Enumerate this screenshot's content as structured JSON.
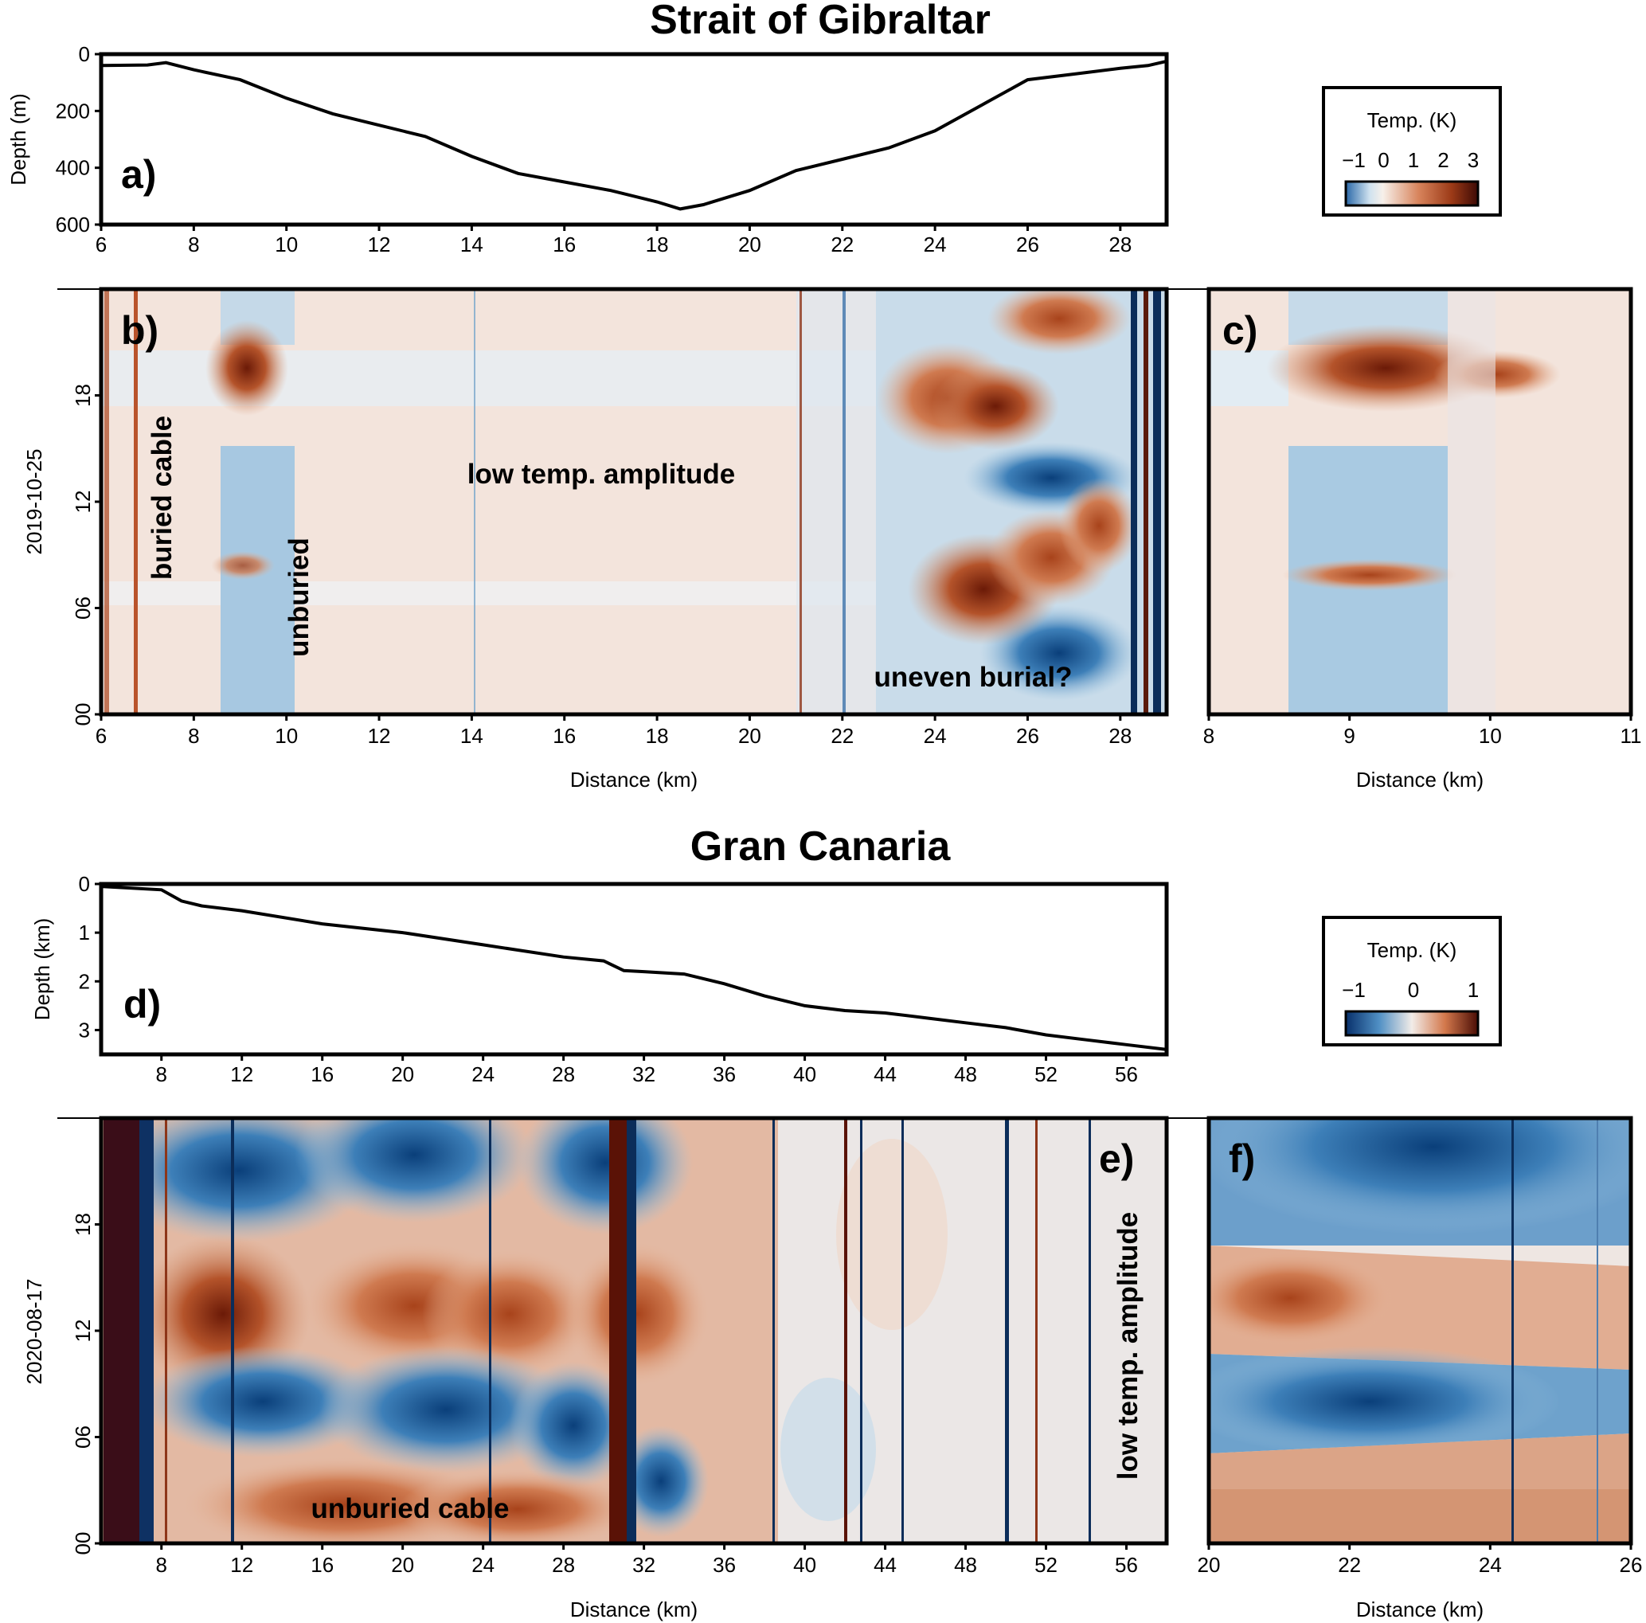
{
  "figure": {
    "gibraltar_title": "Strait of Gibraltar",
    "canaria_title": "Gran Canaria"
  },
  "chart_data": [
    {
      "id": "a",
      "type": "line",
      "panel_label": "a)",
      "ylabel": "Depth (m)",
      "xlabel": "",
      "xlim": [
        6,
        29
      ],
      "ylim": [
        600,
        0
      ],
      "xticks": [
        "6",
        "8",
        "10",
        "12",
        "14",
        "16",
        "18",
        "20",
        "22",
        "24",
        "26",
        "28"
      ],
      "yticks": [
        "0",
        "200",
        "400",
        "600"
      ],
      "series": [
        {
          "name": "bathymetry",
          "x": [
            6,
            7,
            7.4,
            8,
            9,
            10,
            11,
            12,
            13,
            14,
            15,
            16,
            17,
            18,
            18.5,
            19,
            20,
            21,
            22,
            23,
            24,
            25,
            26,
            27,
            28,
            28.6,
            29
          ],
          "y": [
            40,
            38,
            30,
            55,
            90,
            155,
            210,
            250,
            290,
            360,
            420,
            450,
            480,
            520,
            545,
            530,
            480,
            410,
            370,
            330,
            270,
            180,
            90,
            70,
            50,
            40,
            25
          ]
        }
      ]
    },
    {
      "id": "b",
      "type": "heatmap",
      "panel_label": "b)",
      "ylabel": "2019-10-25",
      "xlabel": "Distance (km)",
      "xlim": [
        6,
        29
      ],
      "ylim": [
        0,
        24
      ],
      "xticks": [
        "6",
        "8",
        "10",
        "12",
        "14",
        "16",
        "18",
        "20",
        "22",
        "24",
        "26",
        "28"
      ],
      "yticks": [
        "00",
        "06",
        "12",
        "18"
      ],
      "colorscale": "Temp. (K), range -1 to 3",
      "annotations": [
        "buried cable",
        "unburied",
        "low temp. amplitude",
        "uneven burial?"
      ]
    },
    {
      "id": "c",
      "type": "heatmap",
      "panel_label": "c)",
      "xlabel": "Distance (km)",
      "xlim": [
        8,
        11
      ],
      "ylim": [
        0,
        24
      ],
      "xticks": [
        "8",
        "9",
        "10",
        "11"
      ]
    },
    {
      "id": "d",
      "type": "line",
      "panel_label": "d)",
      "ylabel": "Depth (km)",
      "xlabel": "",
      "xlim": [
        5,
        58
      ],
      "ylim": [
        3.5,
        0
      ],
      "xticks": [
        "8",
        "12",
        "16",
        "20",
        "24",
        "28",
        "32",
        "36",
        "40",
        "44",
        "48",
        "52",
        "56"
      ],
      "yticks": [
        "0",
        "1",
        "2",
        "3"
      ],
      "series": [
        {
          "name": "bathymetry",
          "x": [
            5,
            8,
            9,
            10,
            12,
            16,
            20,
            24,
            28,
            30,
            31,
            32,
            34,
            36,
            38,
            40,
            42,
            44,
            46,
            48,
            50,
            52,
            54,
            56,
            58
          ],
          "y": [
            0.05,
            0.12,
            0.35,
            0.45,
            0.55,
            0.82,
            1.0,
            1.25,
            1.5,
            1.58,
            1.78,
            1.8,
            1.85,
            2.05,
            2.3,
            2.5,
            2.6,
            2.65,
            2.75,
            2.85,
            2.95,
            3.1,
            3.2,
            3.3,
            3.4
          ]
        }
      ]
    },
    {
      "id": "e",
      "type": "heatmap",
      "panel_label": "e)",
      "ylabel": "2020-08-17",
      "xlabel": "Distance (km)",
      "xlim": [
        5,
        58
      ],
      "ylim": [
        0,
        24
      ],
      "xticks": [
        "8",
        "12",
        "16",
        "20",
        "24",
        "28",
        "32",
        "36",
        "40",
        "44",
        "48",
        "52",
        "56"
      ],
      "yticks": [
        "00",
        "06",
        "12",
        "18"
      ],
      "colorscale": "Temp. (K), range -1 to 1",
      "annotations": [
        "unburied cable",
        "low temp. amplitude"
      ]
    },
    {
      "id": "f",
      "type": "heatmap",
      "panel_label": "f)",
      "xlabel": "Distance (km)",
      "xlim": [
        20,
        26
      ],
      "ylim": [
        0,
        24
      ],
      "xticks": [
        "20",
        "22",
        "24",
        "26"
      ]
    }
  ],
  "legend1": {
    "title": "Temp. (K)",
    "ticks": [
      "−1",
      "0",
      "1",
      "2",
      "3"
    ]
  },
  "legend2": {
    "title": "Temp. (K)",
    "ticks": [
      "−1",
      "0",
      "1"
    ]
  }
}
